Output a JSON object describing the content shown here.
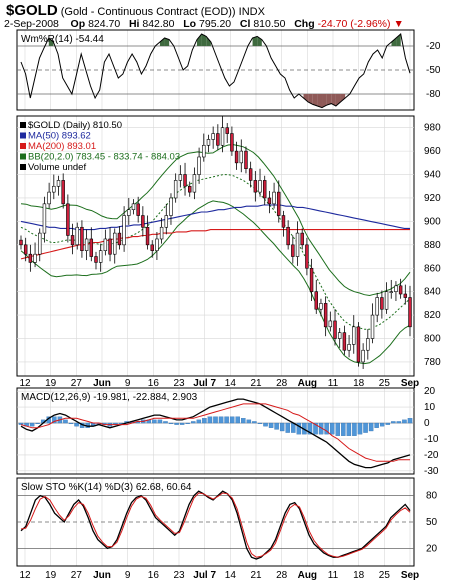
{
  "header": {
    "symbol": "$GOLD",
    "name": "(Gold - Continuous Contract (EOD))",
    "exchange": "INDX",
    "date": "2-Sep-2008",
    "open_label": "Op",
    "open": "824.70",
    "high_label": "Hi",
    "high": "842.80",
    "low_label": "Lo",
    "low": "795.20",
    "close_label": "Cl",
    "close": "810.50",
    "change_label": "Chg",
    "change": "-24.70 (-2.96%)"
  },
  "colors": {
    "up": "#ffffff",
    "down": "#cc1f3c",
    "ma50": "#1e2a9e",
    "ma200": "#d61a1a",
    "bb": "#1c6e1c",
    "macd_hist": "#4f96d8",
    "wm_fill": "#3f6a3f",
    "wm_fill_low": "#8f5a58"
  },
  "chart_data": [
    {
      "type": "line",
      "panel": "Williams %R",
      "legend": "Wm%R(14) -54.44",
      "y_ticks": [
        "-20",
        "-50",
        "-80"
      ],
      "ylim": [
        -100,
        0
      ],
      "series": [
        {
          "values": [
            -40,
            -55,
            -85,
            -60,
            -35,
            -22,
            -10,
            -15,
            -30,
            -60,
            -70,
            -80,
            -55,
            -30,
            -50,
            -70,
            -85,
            -75,
            -40,
            -30,
            -45,
            -60,
            -55,
            -40,
            -30,
            -40,
            -55,
            -45,
            -30,
            -20,
            -15,
            -10,
            -12,
            -20,
            -35,
            -50,
            -45,
            -25,
            -12,
            -5,
            -8,
            -15,
            -30,
            -45,
            -60,
            -70,
            -65,
            -50,
            -35,
            -20,
            -10,
            -8,
            -12,
            -20,
            -35,
            -45,
            -55,
            -60,
            -75,
            -85,
            -80,
            -85,
            -90,
            -93,
            -95,
            -97,
            -94,
            -92,
            -95,
            -90,
            -85,
            -80,
            -70,
            -60,
            -55,
            -40,
            -30,
            -25,
            -35,
            -20,
            -15,
            -10,
            -5,
            -35,
            -54
          ]
        }
      ]
    },
    {
      "type": "candlestick",
      "panel": "Price",
      "legend": [
        "$GOLD (Daily) 810.50",
        "MA(50) 893.62",
        "MA(200) 893.01",
        "BB(20,2.0) 783.45 - 833.74 - 884.03",
        "Volume undef"
      ],
      "x_tick_labels": [
        "12",
        "19",
        "27",
        "Jun",
        "9",
        "16",
        "23",
        "Jul 7",
        "14",
        "21",
        "28",
        "Aug",
        "11",
        "18",
        "25",
        "Sep"
      ],
      "y_ticks": [
        980,
        960,
        940,
        920,
        900,
        880,
        860,
        840,
        820,
        800,
        780
      ],
      "ylim": [
        768,
        990
      ],
      "close": [
        880,
        872,
        865,
        872,
        890,
        915,
        925,
        930,
        935,
        915,
        888,
        880,
        895,
        875,
        885,
        870,
        865,
        875,
        885,
        872,
        890,
        880,
        905,
        910,
        915,
        905,
        895,
        880,
        875,
        885,
        895,
        905,
        920,
        935,
        940,
        930,
        925,
        940,
        955,
        965,
        970,
        975,
        965,
        980,
        975,
        960,
        950,
        960,
        945,
        935,
        925,
        935,
        920,
        915,
        925,
        905,
        895,
        880,
        870,
        890,
        880,
        860,
        840,
        825,
        830,
        810,
        815,
        800,
        805,
        790,
        795,
        810,
        780,
        790,
        800,
        820,
        835,
        825,
        840,
        840,
        845,
        838,
        835,
        810
      ],
      "ma50": [
        900,
        899,
        898,
        897,
        896,
        895,
        895,
        894,
        894,
        894,
        893,
        893,
        893,
        893,
        894,
        894,
        895,
        895,
        896,
        896,
        897,
        897,
        898,
        899,
        900,
        901,
        902,
        903,
        904,
        905,
        906,
        907,
        908,
        908,
        909,
        910,
        910,
        911,
        912,
        912,
        913,
        913,
        913,
        914,
        914,
        914,
        914,
        913,
        913,
        912,
        912,
        911,
        910,
        909,
        908,
        907,
        906,
        905,
        904,
        903,
        902,
        901,
        900,
        899,
        898,
        897,
        896,
        895,
        894,
        894
      ],
      "ma200": [
        868,
        869,
        870,
        871,
        872,
        873,
        874,
        875,
        876,
        877,
        878,
        879,
        880,
        880,
        881,
        882,
        882,
        883,
        884,
        885,
        885,
        886,
        886,
        887,
        887,
        888,
        888,
        889,
        889,
        890,
        890,
        890,
        891,
        891,
        891,
        892,
        892,
        892,
        892,
        893,
        893,
        893,
        893,
        893,
        893,
        893,
        893,
        893,
        893,
        893,
        893,
        893,
        893,
        893,
        893,
        893,
        893,
        893,
        893,
        893,
        893,
        893,
        893,
        893,
        893,
        893,
        893,
        893,
        893,
        893,
        893,
        893,
        893,
        893,
        893,
        893,
        893,
        893,
        893,
        893,
        893
      ],
      "bb_mid": [
        895,
        893,
        890,
        888,
        886,
        884,
        882,
        882,
        883,
        884,
        884,
        884,
        883,
        882,
        882,
        881,
        880,
        880,
        881,
        882,
        884,
        886,
        888,
        890,
        893,
        896,
        900,
        905,
        910,
        915,
        920,
        925,
        928,
        931,
        933,
        935,
        936,
        937,
        938,
        939,
        940,
        940,
        939,
        937,
        935,
        932,
        929,
        925,
        920,
        915,
        910,
        904,
        898,
        892,
        886,
        880,
        872,
        864,
        856,
        848,
        840,
        832,
        826,
        820,
        815,
        812,
        810,
        809,
        808,
        808,
        810,
        812,
        815,
        818,
        822,
        826,
        830,
        834
      ]
    },
    {
      "type": "line",
      "panel": "MACD",
      "legend": "MACD(12,26,9) -19.981, -22.884, 2.903",
      "y_ticks": [
        "20",
        "10",
        "0",
        "-10",
        "-20",
        "-30"
      ],
      "ylim": [
        -32,
        22
      ],
      "series": [
        {
          "values": [
            -2,
            -4,
            -5,
            -3,
            0,
            3,
            5,
            6,
            5,
            3,
            1,
            -1,
            -2,
            -2,
            -1,
            -2,
            -3,
            -2,
            -1,
            0,
            1,
            2,
            3,
            4,
            5,
            5,
            4,
            3,
            2,
            2,
            3,
            4,
            6,
            8,
            10,
            11,
            12,
            13,
            14,
            15,
            15,
            14,
            13,
            12,
            10,
            8,
            6,
            4,
            2,
            0,
            -2,
            -4,
            -6,
            -8,
            -10,
            -12,
            -15,
            -18,
            -21,
            -24,
            -26,
            -27,
            -28,
            -28,
            -27,
            -26,
            -25,
            -23,
            -22,
            -21,
            -20
          ]
        },
        {
          "values": [
            -1,
            -2,
            -3,
            -3,
            -2,
            -1,
            1,
            2,
            3,
            3,
            3,
            2,
            1,
            0,
            0,
            -1,
            -1,
            -1,
            -1,
            -1,
            0,
            1,
            1,
            2,
            3,
            3,
            3,
            3,
            3,
            3,
            3,
            3,
            4,
            5,
            6,
            7,
            8,
            9,
            10,
            11,
            12,
            12,
            12,
            12,
            12,
            11,
            10,
            9,
            8,
            6,
            5,
            3,
            1,
            -1,
            -3,
            -5,
            -8,
            -10,
            -13,
            -16,
            -18,
            -20,
            -22,
            -23,
            -24,
            -24,
            -24,
            -24,
            -23,
            -23,
            -23
          ]
        }
      ]
    },
    {
      "type": "line",
      "panel": "Slow Stochastic",
      "legend": "Slow STO %K(14) %D(3) 62.68, 60.64",
      "y_ticks": [
        "80",
        "50",
        "20"
      ],
      "ylim": [
        0,
        100
      ],
      "series": [
        {
          "values": [
            40,
            45,
            60,
            75,
            80,
            78,
            70,
            60,
            55,
            50,
            60,
            70,
            75,
            68,
            55,
            40,
            30,
            25,
            20,
            22,
            30,
            45,
            60,
            72,
            78,
            80,
            75,
            65,
            55,
            50,
            45,
            40,
            35,
            40,
            55,
            70,
            80,
            85,
            82,
            78,
            75,
            80,
            85,
            82,
            75,
            60,
            40,
            20,
            10,
            8,
            10,
            15,
            20,
            30,
            45,
            60,
            70,
            72,
            65,
            50,
            35,
            25,
            20,
            15,
            12,
            10,
            10,
            12,
            14,
            16,
            18,
            20,
            25,
            30,
            35,
            40,
            45,
            55,
            60,
            65,
            70,
            63
          ]
        },
        {
          "values": [
            42,
            43,
            52,
            65,
            76,
            79,
            75,
            66,
            58,
            52,
            57,
            66,
            72,
            70,
            60,
            46,
            34,
            27,
            22,
            22,
            27,
            40,
            55,
            68,
            76,
            79,
            77,
            69,
            58,
            52,
            47,
            42,
            37,
            38,
            50,
            64,
            77,
            83,
            82,
            79,
            76,
            79,
            83,
            82,
            77,
            65,
            46,
            27,
            14,
            10,
            11,
            14,
            18,
            26,
            40,
            55,
            66,
            70,
            67,
            55,
            40,
            29,
            22,
            17,
            13,
            11,
            10,
            11,
            13,
            15,
            17,
            19,
            23,
            28,
            33,
            38,
            43,
            52,
            58,
            63,
            66,
            61
          ]
        }
      ]
    }
  ]
}
